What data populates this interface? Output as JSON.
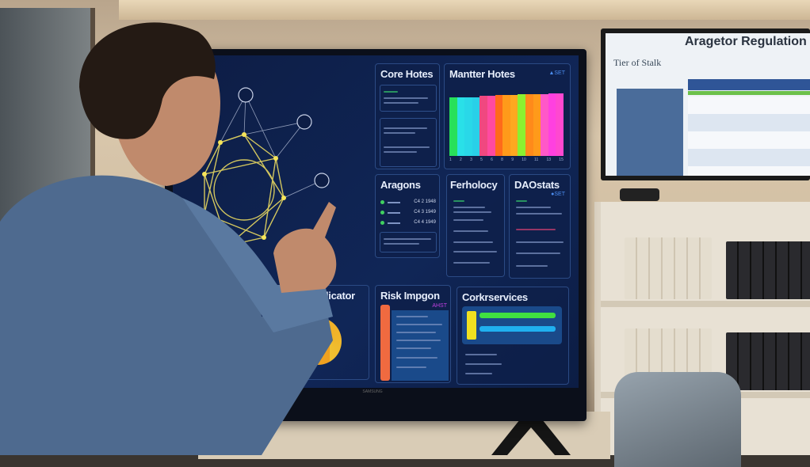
{
  "main_screen": {
    "panels": {
      "core_notes": {
        "title": "Core Hotes"
      },
      "market_notes": {
        "title": "Mantter Hotes",
        "badge": "▲SET"
      },
      "aragons": {
        "title": "Aragons",
        "rows": [
          "C4 2 1948",
          "C4 3 1949",
          "C4 4 1949"
        ]
      },
      "fechology": {
        "title": "Ferholocy"
      },
      "daostats": {
        "title": "DAOstats",
        "badge": "●SET"
      },
      "indicator": {
        "title": "ndicator"
      },
      "risk_impact": {
        "title": "Risk Impgon",
        "badge": "AHST"
      },
      "cork_services": {
        "title": "Corkrservices"
      }
    },
    "bar_colors": [
      "#28e05a",
      "#29e0e8",
      "#29d8e8",
      "#29d0e8",
      "#f04880",
      "#ff4aa0",
      "#ff6a1a",
      "#ff9a1a",
      "#ffa820",
      "#8cf030",
      "#ff8a1a",
      "#ff9a1a",
      "#ff58c8",
      "#ff40e0",
      "#ff48d0"
    ],
    "bar_ticks": [
      "1",
      "2",
      "3",
      "5",
      "6",
      "8",
      "9",
      "10",
      "11",
      "13",
      "15"
    ],
    "brand": "SAMSUNG"
  },
  "side_screen": {
    "title": "Aragetor Regulation",
    "subtitle": "Tier of Stalk",
    "header_color": "#2f5597",
    "accent_green": "#6cc04a"
  }
}
